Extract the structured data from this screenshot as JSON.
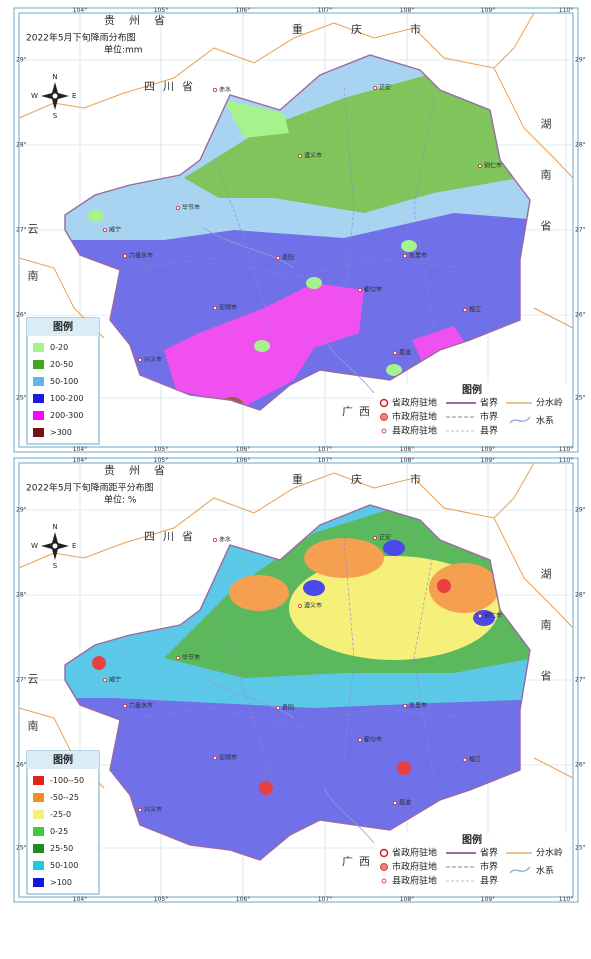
{
  "maps": [
    {
      "title": "2022年5月下旬降雨分布图",
      "unit": "单位:mm",
      "legend_title": "图例",
      "classes": [
        {
          "label": "0-20",
          "color": "#a6f28c"
        },
        {
          "label": "20-50",
          "color": "#3fa81e"
        },
        {
          "label": "50-100",
          "color": "#64b4ec"
        },
        {
          "label": "100-200",
          "color": "#1a1ae6"
        },
        {
          "label": "200-300",
          "color": "#ff00ff"
        },
        {
          "label": ">300",
          "color": "#7a1010"
        }
      ]
    },
    {
      "title": "2022年5月下旬降雨距平分布图",
      "unit": "单位: %",
      "legend_title": "图例",
      "classes": [
        {
          "label": "-100--50",
          "color": "#e8201a"
        },
        {
          "label": "-50--25",
          "color": "#f58c1e"
        },
        {
          "label": "-25-0",
          "color": "#f5f07a"
        },
        {
          "label": "0-25",
          "color": "#3ccc3c"
        },
        {
          "label": "25-50",
          "color": "#1e8c1e"
        },
        {
          "label": "50-100",
          "color": "#1ec8e6"
        },
        {
          "label": ">100",
          "color": "#1414e6"
        }
      ]
    }
  ],
  "neighbors": {
    "top": "贵州省",
    "chongqing": "重庆市",
    "sichuan": "四川省",
    "hunan": "湖南省",
    "yunnan": "云南",
    "guangxi": "广西"
  },
  "lon_ticks": [
    "104°",
    "105°",
    "106°",
    "107°",
    "108°",
    "109°",
    "110°"
  ],
  "lat_ticks": [
    "29°",
    "28°",
    "27°",
    "26°",
    "25°"
  ],
  "compass": {
    "n": "N",
    "s": "S",
    "e": "E",
    "w": "W"
  },
  "symbol_legend": {
    "title": "图例",
    "points": [
      "省政府驻地",
      "市政府驻地",
      "县政府驻地"
    ],
    "lines": [
      "省界",
      "市界",
      "县界"
    ],
    "water": [
      "分水岭",
      "水系"
    ]
  },
  "cities": [
    "遵义市",
    "毕节市",
    "铜仁市",
    "六盘水市",
    "安顺市",
    "凯里市",
    "都匀市",
    "兴义市",
    "贵阳",
    "赤水",
    "正安",
    "威宁",
    "荔波",
    "榕江"
  ]
}
